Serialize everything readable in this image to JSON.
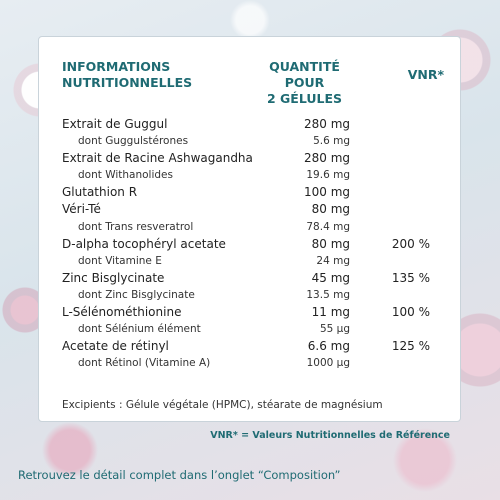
{
  "header": {
    "col1_line1": "INFORMATIONS",
    "col1_line2": "NUTRITIONNELLES",
    "col2_line1": "QUANTITÉ POUR",
    "col2_line2": "2 GÉLULES",
    "col3": "VNR*"
  },
  "rows": [
    {
      "name": "Extrait de Guggul",
      "qty": "280 mg",
      "vnr": "",
      "sub": false
    },
    {
      "name": "dont Guggulstérones",
      "qty": "5.6 mg",
      "vnr": "",
      "sub": true
    },
    {
      "name": "Extrait de Racine Ashwagandha",
      "qty": "280 mg",
      "vnr": "",
      "sub": false
    },
    {
      "name": "dont Withanolides",
      "qty": "19.6 mg",
      "vnr": "",
      "sub": true
    },
    {
      "name": "Glutathion R",
      "qty": "100 mg",
      "vnr": "",
      "sub": false
    },
    {
      "name": "Véri-Té",
      "qty": "80 mg",
      "vnr": "",
      "sub": false
    },
    {
      "name": "dont Trans resveratrol",
      "qty": "78.4 mg",
      "vnr": "",
      "sub": true
    },
    {
      "name": "D-alpha tocophéryl acetate",
      "qty": "80 mg",
      "vnr": "200 %",
      "sub": false
    },
    {
      "name": "dont Vitamine E",
      "qty": "24 mg",
      "vnr": "",
      "sub": true
    },
    {
      "name": "Zinc Bisglycinate",
      "qty": "45 mg",
      "vnr": "135 %",
      "sub": false
    },
    {
      "name": "dont Zinc Bisglycinate",
      "qty": "13.5 mg",
      "vnr": "",
      "sub": true
    },
    {
      "name": "L-Sélénométhionine",
      "qty": "11 mg",
      "vnr": "100 %",
      "sub": false
    },
    {
      "name": "dont Sélénium élément",
      "qty": "55 µg",
      "vnr": "",
      "sub": true
    },
    {
      "name": "Acetate de rétinyl",
      "qty": "6.6 mg",
      "vnr": "125 %",
      "sub": false
    },
    {
      "name": "dont Rétinol (Vitamine A)",
      "qty": "1000 µg",
      "vnr": "",
      "sub": true
    }
  ],
  "excipients": "Excipients : Gélule végétale (HPMC), stéarate de magnésium",
  "footnote": "VNR* = Valeurs Nutritionnelles de Référence",
  "bottom_text": "Retrouvez le détail complet dans l’onglet “Composition”"
}
